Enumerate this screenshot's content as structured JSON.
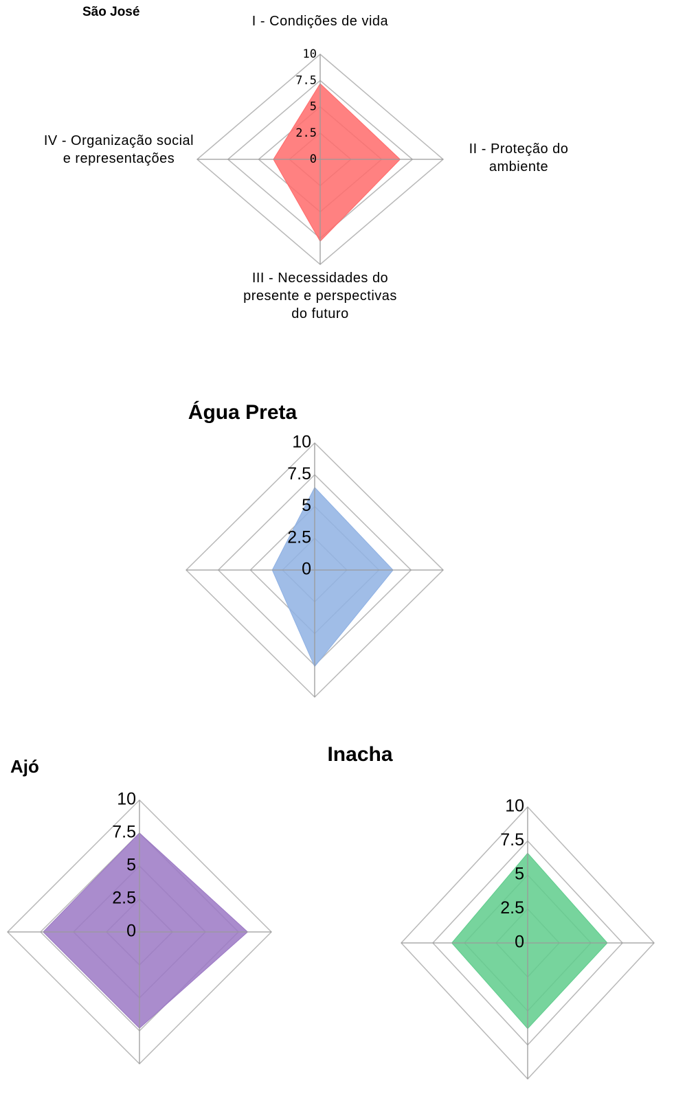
{
  "chart_data": [
    {
      "type": "radar",
      "title": "São José",
      "categories": [
        "I - Condições de vida",
        "II - Proteção  do ambiente",
        "III - Necessidades do presente e perspectivas do futuro",
        "IV - Organização social e representações"
      ],
      "values": [
        7.2,
        6.5,
        7.8,
        3.8
      ],
      "color": "#ff6b6b",
      "ylim": [
        0,
        10
      ],
      "yticks": [
        0,
        2.5,
        5,
        7.5,
        10
      ],
      "grid": true
    },
    {
      "type": "radar",
      "title": "Água Preta",
      "values": [
        6.5,
        6.1,
        7.6,
        3.3
      ],
      "color": "#8fb1e3",
      "ylim": [
        0,
        10
      ],
      "yticks": [
        0,
        2.5,
        5,
        7.5,
        10
      ],
      "grid": true
    },
    {
      "type": "radar",
      "title": "Ajó",
      "values": [
        7.5,
        8.2,
        7.3,
        7.3
      ],
      "color": "#9b78c4",
      "ylim": [
        0,
        10
      ],
      "yticks": [
        0,
        2.5,
        5,
        7.5,
        10
      ],
      "grid": true
    },
    {
      "type": "radar",
      "title": "Inacha",
      "values": [
        6.6,
        6.3,
        6.3,
        6.0
      ],
      "color": "#5fcc8c",
      "ylim": [
        0,
        10
      ],
      "yticks": [
        0,
        2.5,
        5,
        7.5,
        10
      ],
      "grid": true
    }
  ]
}
